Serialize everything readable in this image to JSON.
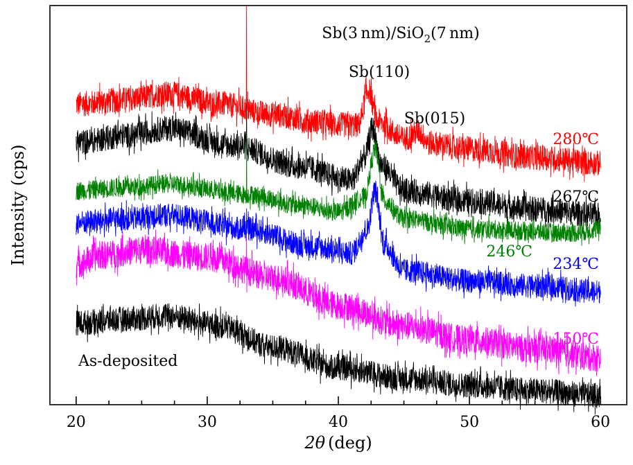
{
  "chart_data": {
    "type": "line",
    "title": "Sb(3 nm)/SiO2(7 nm)",
    "title_parts": {
      "a": "Sb(3 nm)/SiO",
      "sub": "2",
      "b": "(7 nm)"
    },
    "xlabel": "2θ (deg)",
    "xlabel_parts": {
      "theta": "2θ",
      "unit": "(deg)"
    },
    "ylabel": "Intensity (cps)",
    "xlim": [
      18,
      62
    ],
    "ylim": [
      0,
      100
    ],
    "x_ticks": [
      "20",
      "30",
      "40",
      "50",
      "60"
    ],
    "x_tick_values": [
      20,
      30,
      40,
      50,
      60
    ],
    "x_minor_step": 2.5,
    "y_ticks_shown": false,
    "grid": false,
    "legend": "none (inline labels at right)",
    "annotations": [
      "Sb(110)",
      "Sb(015)"
    ],
    "series": [
      {
        "name": "280℃",
        "color": "#ff0000",
        "noise": 3.2,
        "points": [
          [
            20,
            75.3
          ],
          [
            24,
            76.5
          ],
          [
            27,
            77.9
          ],
          [
            31,
            75.3
          ],
          [
            35,
            72.7
          ],
          [
            38,
            71
          ],
          [
            40,
            70.1
          ],
          [
            41.5,
            70
          ],
          [
            42.3,
            78.8
          ],
          [
            43,
            71
          ],
          [
            45,
            66.6
          ],
          [
            46.1,
            68.3
          ],
          [
            47,
            65.5
          ],
          [
            50,
            64
          ],
          [
            55,
            62
          ],
          [
            60,
            60.5
          ]
        ],
        "spikes": [
          [
            33.0,
            100
          ]
        ]
      },
      {
        "name": "267℃",
        "color": "#000000",
        "noise": 3.2,
        "points": [
          [
            20,
            65.7
          ],
          [
            24,
            67.5
          ],
          [
            27,
            69.2
          ],
          [
            32,
            64.9
          ],
          [
            37,
            59.7
          ],
          [
            41,
            56.2
          ],
          [
            42.0,
            62
          ],
          [
            42.6,
            69.2
          ],
          [
            43.3,
            60
          ],
          [
            45,
            53.6
          ],
          [
            50,
            51
          ],
          [
            55,
            49
          ],
          [
            60,
            47.5
          ]
        ],
        "spikes": [
          [
            33.0,
            75.3
          ]
        ]
      },
      {
        "name": "246℃",
        "color": "#008000",
        "noise": 2.4,
        "points": [
          [
            20,
            53.6
          ],
          [
            24,
            54.5
          ],
          [
            27,
            55.3
          ],
          [
            33,
            52.7
          ],
          [
            37,
            50
          ],
          [
            40,
            48.3
          ],
          [
            42.0,
            52
          ],
          [
            42.8,
            64
          ],
          [
            43.5,
            51
          ],
          [
            45,
            46.6
          ],
          [
            50,
            44
          ],
          [
            58,
            43.1
          ],
          [
            60,
            44
          ]
        ],
        "spikes": [
          [
            33.0,
            68.3
          ]
        ]
      },
      {
        "name": "234℃",
        "color": "#0000ff",
        "noise": 3.0,
        "points": [
          [
            20,
            45.7
          ],
          [
            24,
            46.6
          ],
          [
            27,
            47.5
          ],
          [
            33,
            44
          ],
          [
            38,
            39.7
          ],
          [
            41,
            37.9
          ],
          [
            42.2,
            44
          ],
          [
            42.8,
            53.6
          ],
          [
            43.5,
            40
          ],
          [
            45,
            33.6
          ],
          [
            50,
            31
          ],
          [
            55,
            29.8
          ],
          [
            60,
            28.3
          ]
        ],
        "spikes": [
          [
            33.0,
            49.2
          ]
        ]
      },
      {
        "name": "150℃",
        "color": "#ff00ff",
        "noise": 3.6,
        "points": [
          [
            20,
            35.3
          ],
          [
            22,
            37.5
          ],
          [
            25,
            38.8
          ],
          [
            30,
            37
          ],
          [
            35,
            31.8
          ],
          [
            40,
            24.9
          ],
          [
            45,
            19.7
          ],
          [
            50,
            16.2
          ],
          [
            55,
            14
          ],
          [
            60,
            11.8
          ]
        ],
        "spikes": [
          [
            33.0,
            42.3
          ]
        ]
      },
      {
        "name": "As-deposited",
        "color": "#000000",
        "noise": 3.2,
        "points": [
          [
            20,
            20.5
          ],
          [
            24,
            21.5
          ],
          [
            27,
            22.3
          ],
          [
            31,
            19.7
          ],
          [
            35,
            14.4
          ],
          [
            40,
            9.2
          ],
          [
            45,
            6.6
          ],
          [
            50,
            4.9
          ],
          [
            55,
            3.5
          ],
          [
            60,
            2.3
          ]
        ],
        "spikes": []
      }
    ]
  }
}
